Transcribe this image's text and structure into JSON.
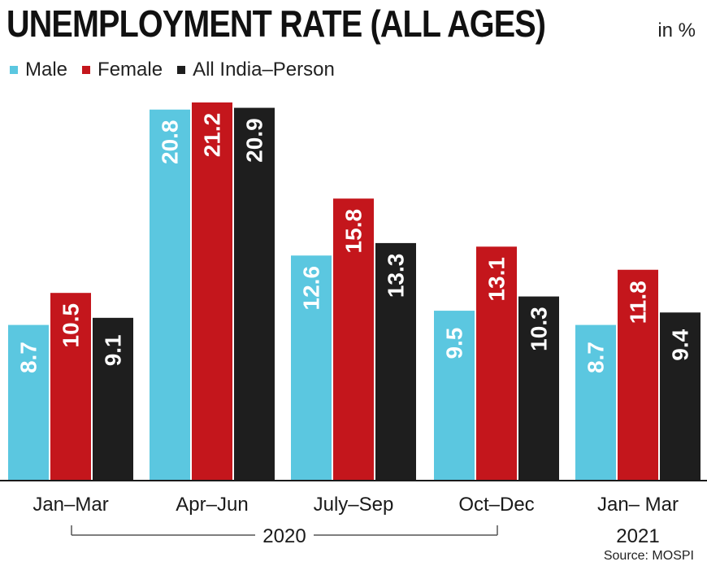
{
  "chart_data": {
    "type": "bar",
    "title": "UNEMPLOYMENT RATE (ALL AGES)",
    "unit_label": "in %",
    "categories": [
      "Jan–Mar",
      "Apr–Jun",
      "July–Sep",
      "Oct–Dec",
      "Jan– Mar"
    ],
    "series": [
      {
        "name": "Male",
        "color": "#5bc7e0",
        "values": [
          8.7,
          20.8,
          12.6,
          9.5,
          8.7
        ]
      },
      {
        "name": "Female",
        "color": "#c4161c",
        "values": [
          10.5,
          21.2,
          15.8,
          13.1,
          11.8
        ]
      },
      {
        "name": "All India–Person",
        "color": "#1e1e1e",
        "values": [
          9.1,
          20.9,
          13.3,
          10.3,
          9.4
        ]
      }
    ],
    "year_groups": [
      {
        "label": "2020",
        "categories": [
          "Jan–Mar",
          "Apr–Jun",
          "July–Sep",
          "Oct–Dec"
        ]
      },
      {
        "label": "2021",
        "categories": [
          "Jan– Mar"
        ]
      }
    ],
    "ylim": [
      0,
      21.2
    ],
    "source": "Source: MOSPI"
  }
}
